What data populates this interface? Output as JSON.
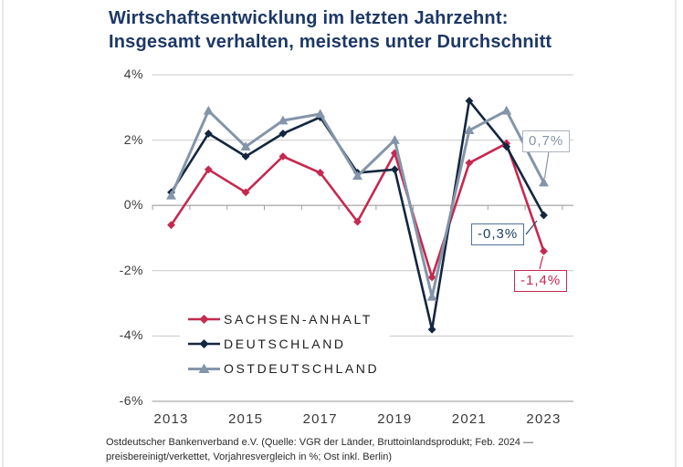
{
  "page": {
    "title_line1": "Wirtschaftsentwicklung im letzten Jahrzehnt:",
    "title_line2": "Insgesamt verhalten, meistens unter Durchschnitt",
    "footer_line1": "Ostdeutscher Bankenverband e.V. (Quelle: VGR der Länder, Bruttoinlandsprodukt; Feb. 2024 —",
    "footer_line2": "preisbereinigt/verkettet, Vorjahresvergleich in %; Ost inkl. Berlin)"
  },
  "colors": {
    "title": "#1D3866",
    "sachsen_anhalt": "#C5294F",
    "deutschland": "#14263F",
    "ostdeutschland": "#8495A9",
    "gridline": "#C9C9C9",
    "zero_axis": "#9E9E9E",
    "bottom_axis": "#ABABAB",
    "axis_text": "#3A3A3A"
  },
  "chart_data": {
    "type": "line",
    "title": "Wirtschaftsentwicklung im letzten Jahrzehnt: Insgesamt verhalten, meistens unter Durchschnitt",
    "x": [
      2013,
      2014,
      2015,
      2016,
      2017,
      2018,
      2019,
      2020,
      2021,
      2022,
      2023
    ],
    "series": [
      {
        "name": "SACHSEN-ANHALT",
        "color": "#C5294F",
        "marker": "diamond",
        "values": [
          -0.6,
          1.1,
          0.4,
          1.5,
          1.0,
          -0.5,
          1.6,
          -2.2,
          1.3,
          1.9,
          -1.4
        ]
      },
      {
        "name": "DEUTSCHLAND",
        "color": "#14263F",
        "marker": "diamond",
        "values": [
          0.4,
          2.2,
          1.5,
          2.2,
          2.7,
          1.0,
          1.1,
          -3.8,
          3.2,
          1.8,
          -0.3
        ]
      },
      {
        "name": "OSTDEUTSCHLAND",
        "color": "#8495A9",
        "marker": "triangle",
        "values": [
          0.3,
          2.9,
          1.8,
          2.6,
          2.8,
          0.9,
          2.0,
          -2.8,
          2.3,
          2.9,
          0.7
        ]
      }
    ],
    "ylim": [
      -6,
      4
    ],
    "unit": "%",
    "grid": "horizontal",
    "legend_position": "inside-bottom-left",
    "yticks": [
      {
        "value": 4,
        "label": "4%"
      },
      {
        "value": 2,
        "label": "2%"
      },
      {
        "value": 0,
        "label": "0%"
      },
      {
        "value": -2,
        "label": "-2%"
      },
      {
        "value": -4,
        "label": "-4%"
      },
      {
        "value": -6,
        "label": "-6%"
      }
    ],
    "xticks": [
      {
        "value": 2013,
        "label": "2013"
      },
      {
        "value": 2015,
        "label": "2015"
      },
      {
        "value": 2017,
        "label": "2017"
      },
      {
        "value": 2019,
        "label": "2019"
      },
      {
        "value": 2021,
        "label": "2021"
      },
      {
        "value": 2023,
        "label": "2023"
      }
    ],
    "annotations": [
      {
        "series": "OSTDEUTSCHLAND",
        "year": 2023,
        "text": "0,7%"
      },
      {
        "series": "DEUTSCHLAND",
        "year": 2023,
        "text": "-0,3%"
      },
      {
        "series": "SACHSEN-ANHALT",
        "year": 2023,
        "text": "-1,4%"
      }
    ]
  }
}
